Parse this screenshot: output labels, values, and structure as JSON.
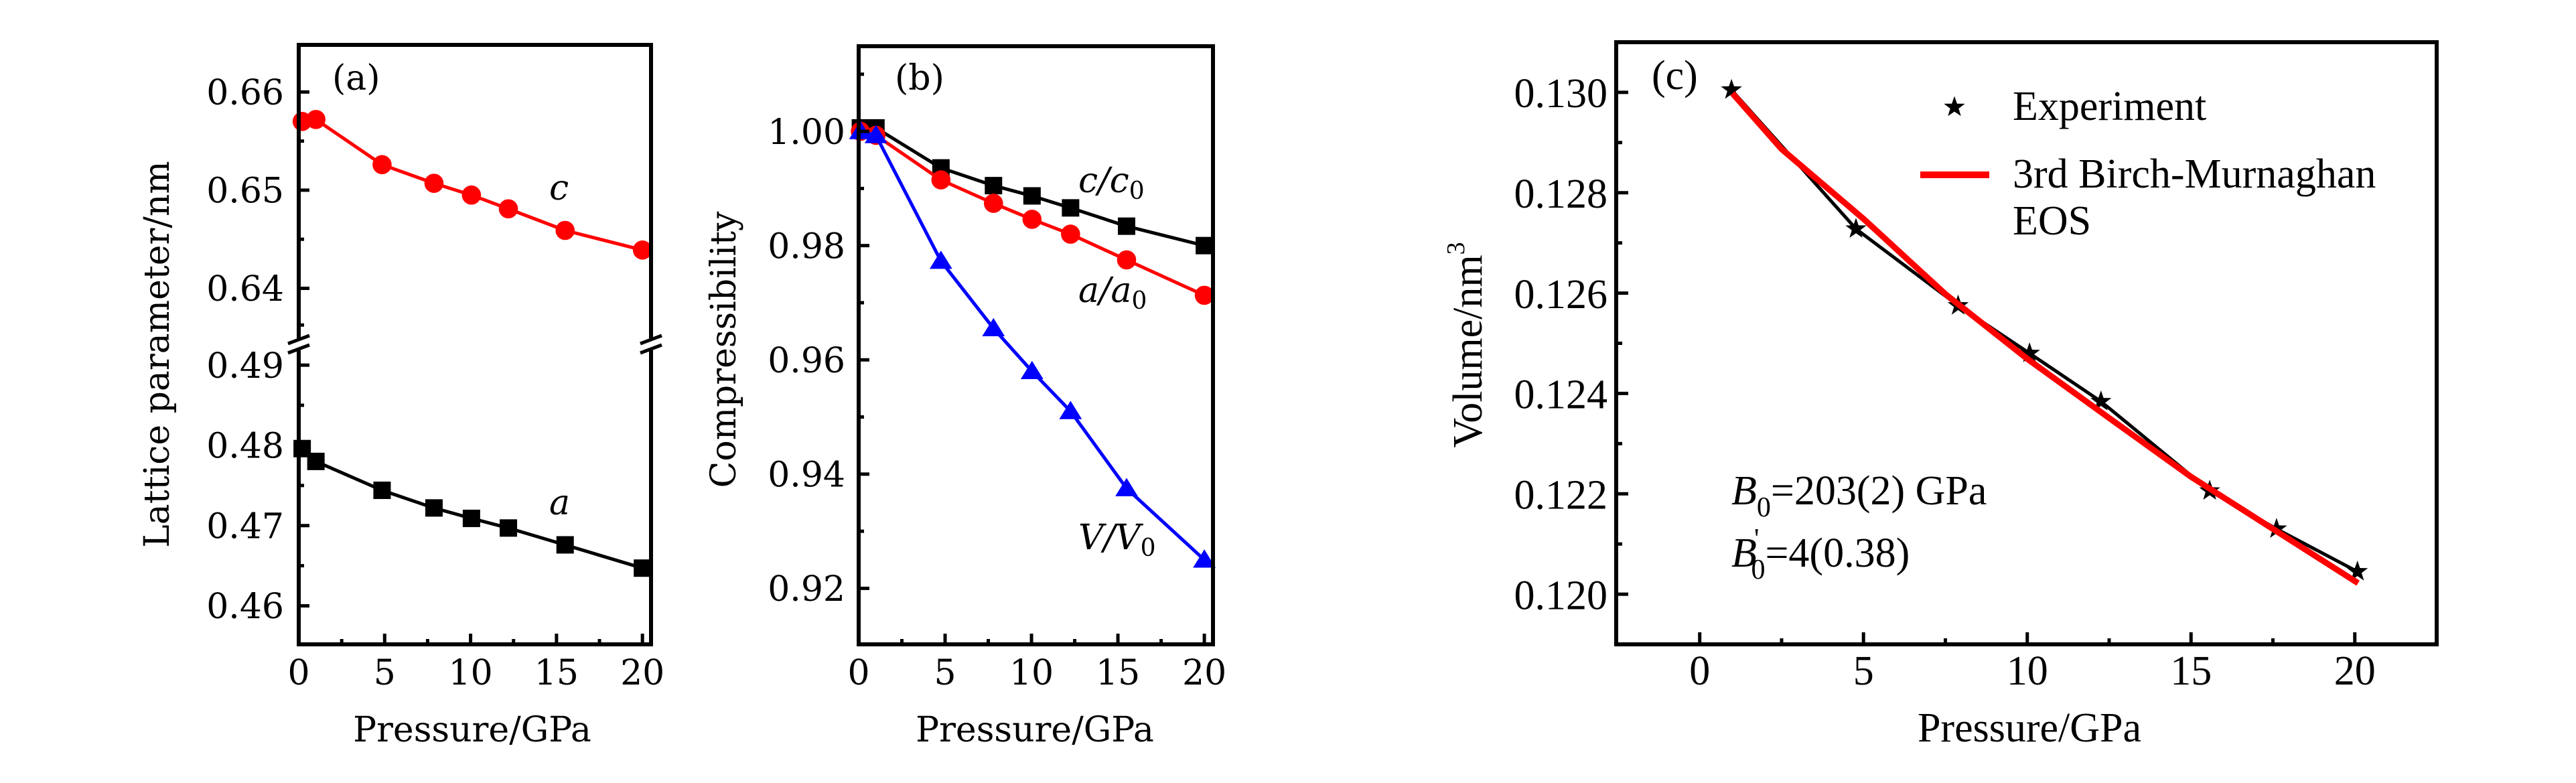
{
  "chart_data": [
    {
      "panel": "(a)",
      "type": "line",
      "xlabel": "Pressure/GPa",
      "ylabel": "Lattice parameter/nm",
      "xlim": [
        0,
        20.5
      ],
      "xticks": [
        "0",
        "5",
        "10",
        "15",
        "20"
      ],
      "y_axis_break": true,
      "ylim_upper": [
        0.6343,
        0.6648
      ],
      "ylim_lower": [
        0.4552,
        0.4926
      ],
      "yticks_upper": [
        "0.64",
        "0.65",
        "0.66"
      ],
      "yticks_lower": [
        "0.46",
        "0.47",
        "0.48",
        "0.49"
      ],
      "series": [
        {
          "name": "c",
          "color": "#ff0000",
          "marker": "circle",
          "segment": "upper",
          "x": [
            0.2,
            1.0,
            4.85,
            7.87,
            10.05,
            12.2,
            15.5,
            20.0
          ],
          "y": [
            0.657,
            0.6572,
            0.6526,
            0.6507,
            0.6495,
            0.6481,
            0.6459,
            0.6439
          ]
        },
        {
          "name": "a",
          "color": "#000000",
          "marker": "square",
          "segment": "lower",
          "x": [
            0.2,
            1.0,
            4.85,
            7.87,
            10.05,
            12.2,
            15.5,
            20.0
          ],
          "y": [
            0.4796,
            0.478,
            0.4744,
            0.4722,
            0.4709,
            0.4697,
            0.4676,
            0.4647
          ]
        }
      ]
    },
    {
      "panel": "(b)",
      "type": "line",
      "xlabel": "Pressure/GPa",
      "ylabel": "Compressibility",
      "xlim": [
        0,
        20.5
      ],
      "ylim": [
        0.9102,
        1.0149
      ],
      "xticks": [
        "0",
        "5",
        "10",
        "15",
        "20"
      ],
      "yticks": [
        "0.92",
        "0.94",
        "0.96",
        "0.98",
        "1.00"
      ],
      "series": [
        {
          "name": "c/c",
          "sub": "0",
          "color": "#000000",
          "marker": "square",
          "x": [
            0.1,
            1.0,
            4.76,
            7.8,
            10.03,
            12.26,
            15.5,
            20.0
          ],
          "y": [
            1.0006,
            1.0006,
            0.9936,
            0.9905,
            0.9887,
            0.9866,
            0.9834,
            0.98
          ]
        },
        {
          "name": "a/a",
          "sub": "0",
          "color": "#ff0000",
          "marker": "circle",
          "x": [
            0.1,
            1.0,
            4.76,
            7.8,
            10.03,
            12.26,
            15.5,
            20.0
          ],
          "y": [
            1.0,
            0.9993,
            0.9915,
            0.9874,
            0.9846,
            0.982,
            0.9775,
            0.9713
          ]
        },
        {
          "name": "V/V",
          "sub": "0",
          "color": "#0000ff",
          "marker": "triangle",
          "x": [
            0.1,
            1.0,
            4.76,
            7.8,
            10.03,
            12.26,
            15.5,
            20.0
          ],
          "y": [
            1.0,
            0.9993,
            0.9773,
            0.9655,
            0.958,
            0.951,
            0.9375,
            0.925
          ]
        }
      ]
    },
    {
      "panel": "(c)",
      "type": "scatter",
      "xlabel": "Pressure/GPa",
      "ylabel": "Volume/nm",
      "ylabel_sup": "3",
      "xlim": [
        -2.55,
        22.5
      ],
      "ylim": [
        0.119,
        0.131
      ],
      "xticks": [
        "0",
        "5",
        "10",
        "15",
        "20"
      ],
      "yticks": [
        "0.120",
        "0.122",
        "0.124",
        "0.126",
        "0.128",
        "0.130"
      ],
      "legend_position": "top-right",
      "series": [
        {
          "name": "Experiment",
          "color": "#000000",
          "marker": "star",
          "x": [
            0.97,
            4.77,
            7.89,
            10.07,
            12.25,
            15.57,
            17.61,
            20.08
          ],
          "y": [
            0.13005,
            0.12728,
            0.12575,
            0.1248,
            0.12384,
            0.12206,
            0.1213,
            0.12045
          ]
        },
        {
          "name": "3rd Birch-Murnaghan",
          "name_line2": "EOS",
          "color": "#ff0000",
          "marker": "none",
          "x": [
            1.0,
            2.5,
            5.0,
            7.5,
            10.0,
            12.5,
            15.0,
            17.5,
            20.1
          ],
          "y": [
            0.12998,
            0.12887,
            0.12748,
            0.12598,
            0.12469,
            0.12351,
            0.12234,
            0.1213,
            0.12022
          ]
        }
      ],
      "annotations": [
        {
          "sym": "B",
          "sub": "0",
          "prime": "",
          "text": "=203(2) GPa"
        },
        {
          "sym": "B",
          "sub": "0",
          "prime": "'",
          "text": "=4(0.38)"
        }
      ]
    }
  ]
}
